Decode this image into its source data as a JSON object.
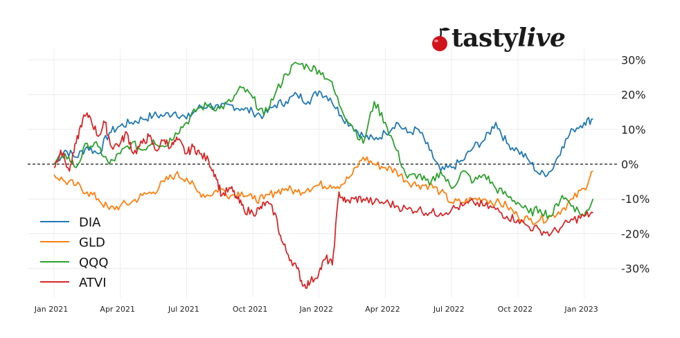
{
  "brand": {
    "name_main": "tasty",
    "name_accent": "live",
    "icon": "cherry-icon",
    "color": "#d0121b"
  },
  "chart_data": {
    "type": "line",
    "title": "",
    "xlabel": "",
    "ylabel": "",
    "x_tick_labels": [
      "Jan 2021",
      "Apr 2021",
      "Jul 2021",
      "Oct 2021",
      "Jan 2022",
      "Apr 2022",
      "Jul 2022",
      "Oct 2022",
      "Jan 2023"
    ],
    "y_ticks": [
      30,
      20,
      10,
      0,
      -10,
      -20,
      -30
    ],
    "y_tick_labels": [
      "30%",
      "20%",
      "10%",
      "0%",
      "-10%",
      "-20%",
      "-30%"
    ],
    "ylim": [
      -37,
      33
    ],
    "x_month_range": [
      0,
      24.5
    ],
    "zero_line": "dashed",
    "grid": true,
    "legend_position": "lower-left",
    "series": [
      {
        "name": "DIA",
        "color": "#1f77b4",
        "points": [
          [
            0,
            0
          ],
          [
            0.5,
            4
          ],
          [
            1,
            2
          ],
          [
            1.5,
            5
          ],
          [
            2,
            3
          ],
          [
            2.5,
            9
          ],
          [
            3,
            11
          ],
          [
            3.5,
            12
          ],
          [
            4,
            13
          ],
          [
            4.5,
            14
          ],
          [
            5,
            14
          ],
          [
            5.5,
            15
          ],
          [
            6,
            13
          ],
          [
            6.5,
            16
          ],
          [
            7,
            17
          ],
          [
            7.5,
            16
          ],
          [
            8,
            17
          ],
          [
            8.5,
            16
          ],
          [
            9,
            15
          ],
          [
            9.5,
            14
          ],
          [
            10,
            17
          ],
          [
            10.5,
            18
          ],
          [
            11,
            20
          ],
          [
            11.5,
            18
          ],
          [
            12,
            21
          ],
          [
            12.5,
            19
          ],
          [
            13,
            14
          ],
          [
            13.5,
            11
          ],
          [
            14,
            8
          ],
          [
            14.5,
            7
          ],
          [
            15,
            9
          ],
          [
            15.5,
            12
          ],
          [
            16,
            9
          ],
          [
            16.5,
            10
          ],
          [
            17,
            4
          ],
          [
            17.5,
            -2
          ],
          [
            18,
            -1
          ],
          [
            18.5,
            1
          ],
          [
            19,
            5
          ],
          [
            19.5,
            7
          ],
          [
            20,
            12
          ],
          [
            20.5,
            6
          ],
          [
            21,
            4
          ],
          [
            21.5,
            1
          ],
          [
            22,
            -3
          ],
          [
            22.5,
            -2
          ],
          [
            23,
            5
          ],
          [
            23.5,
            10
          ],
          [
            24,
            12
          ],
          [
            24.4,
            13
          ]
        ]
      },
      {
        "name": "GLD",
        "color": "#ff7f0e",
        "points": [
          [
            0,
            -3
          ],
          [
            0.5,
            -5
          ],
          [
            1,
            -6
          ],
          [
            1.5,
            -8
          ],
          [
            2,
            -10
          ],
          [
            2.5,
            -13
          ],
          [
            3,
            -12
          ],
          [
            3.5,
            -11
          ],
          [
            4,
            -9
          ],
          [
            4.5,
            -8
          ],
          [
            5,
            -5
          ],
          [
            5.5,
            -3
          ],
          [
            6,
            -4
          ],
          [
            6.5,
            -8
          ],
          [
            7,
            -9
          ],
          [
            7.5,
            -7
          ],
          [
            8,
            -9
          ],
          [
            8.5,
            -8
          ],
          [
            9,
            -10
          ],
          [
            9.5,
            -10
          ],
          [
            10,
            -8
          ],
          [
            10.5,
            -7
          ],
          [
            11,
            -8
          ],
          [
            11.5,
            -7
          ],
          [
            12,
            -6
          ],
          [
            12.5,
            -6
          ],
          [
            13,
            -6
          ],
          [
            13.5,
            -3
          ],
          [
            14,
            2
          ],
          [
            14.5,
            0
          ],
          [
            15,
            -1
          ],
          [
            15.5,
            -2
          ],
          [
            16,
            -5
          ],
          [
            16.5,
            -6
          ],
          [
            17,
            -6
          ],
          [
            17.5,
            -8
          ],
          [
            18,
            -11
          ],
          [
            18.5,
            -11
          ],
          [
            19,
            -10
          ],
          [
            19.5,
            -10
          ],
          [
            20,
            -11
          ],
          [
            20.5,
            -12
          ],
          [
            21,
            -15
          ],
          [
            21.5,
            -16
          ],
          [
            22,
            -16
          ],
          [
            22.5,
            -15
          ],
          [
            23,
            -13
          ],
          [
            23.5,
            -10
          ],
          [
            24,
            -7
          ],
          [
            24.4,
            -2
          ]
        ]
      },
      {
        "name": "QQQ",
        "color": "#2ca02c",
        "points": [
          [
            0,
            0
          ],
          [
            0.5,
            3
          ],
          [
            1,
            -1
          ],
          [
            1.5,
            6
          ],
          [
            2,
            5
          ],
          [
            2.5,
            0
          ],
          [
            3,
            3
          ],
          [
            3.5,
            6
          ],
          [
            4,
            4
          ],
          [
            4.5,
            7
          ],
          [
            5,
            5
          ],
          [
            5.5,
            9
          ],
          [
            6,
            12
          ],
          [
            6.5,
            16
          ],
          [
            7,
            17
          ],
          [
            7.5,
            16
          ],
          [
            8,
            18
          ],
          [
            8.5,
            22
          ],
          [
            9,
            19
          ],
          [
            9.5,
            14
          ],
          [
            10,
            20
          ],
          [
            10.5,
            26
          ],
          [
            11,
            29
          ],
          [
            11.5,
            28
          ],
          [
            12,
            27
          ],
          [
            12.5,
            24
          ],
          [
            13,
            16
          ],
          [
            13.5,
            11
          ],
          [
            14,
            6
          ],
          [
            14.5,
            18
          ],
          [
            15,
            12
          ],
          [
            15.5,
            4
          ],
          [
            16,
            -4
          ],
          [
            16.5,
            -3
          ],
          [
            17,
            -6
          ],
          [
            17.5,
            -2
          ],
          [
            18,
            -7
          ],
          [
            18.5,
            -2
          ],
          [
            19,
            -5
          ],
          [
            19.5,
            -3
          ],
          [
            20,
            -7
          ],
          [
            20.5,
            -9
          ],
          [
            21,
            -11
          ],
          [
            21.5,
            -14
          ],
          [
            22,
            -13
          ],
          [
            22.5,
            -15
          ],
          [
            23,
            -9
          ],
          [
            23.5,
            -12
          ],
          [
            24,
            -15
          ],
          [
            24.4,
            -10
          ]
        ]
      },
      {
        "name": "ATVI",
        "color": "#d62728",
        "points": [
          [
            0,
            -1
          ],
          [
            0.3,
            4
          ],
          [
            0.7,
            -2
          ],
          [
            1,
            6
          ],
          [
            1.3,
            13
          ],
          [
            1.6,
            14
          ],
          [
            2,
            8
          ],
          [
            2.3,
            12
          ],
          [
            2.6,
            5
          ],
          [
            3,
            6
          ],
          [
            3.3,
            9
          ],
          [
            3.6,
            3
          ],
          [
            4,
            6
          ],
          [
            4.3,
            8
          ],
          [
            4.6,
            4
          ],
          [
            5,
            7
          ],
          [
            5.3,
            5
          ],
          [
            5.6,
            7
          ],
          [
            6,
            3
          ],
          [
            6.3,
            5
          ],
          [
            6.6,
            3
          ],
          [
            7,
            1
          ],
          [
            7.3,
            -3
          ],
          [
            7.6,
            -9
          ],
          [
            8,
            -7
          ],
          [
            8.3,
            -10
          ],
          [
            8.6,
            -13
          ],
          [
            9,
            -14
          ],
          [
            9.3,
            -13
          ],
          [
            9.6,
            -11
          ],
          [
            10,
            -14
          ],
          [
            10.3,
            -22
          ],
          [
            10.6,
            -26
          ],
          [
            11,
            -30
          ],
          [
            11.3,
            -35
          ],
          [
            11.6,
            -34
          ],
          [
            12,
            -31
          ],
          [
            12.3,
            -27
          ],
          [
            12.6,
            -29
          ],
          [
            12.9,
            -8
          ],
          [
            13.2,
            -11
          ],
          [
            13.6,
            -10
          ],
          [
            14,
            -10
          ],
          [
            14.5,
            -11
          ],
          [
            15,
            -11
          ],
          [
            15.5,
            -12
          ],
          [
            16,
            -13
          ],
          [
            16.5,
            -13
          ],
          [
            17,
            -14
          ],
          [
            17.5,
            -14
          ],
          [
            18,
            -13
          ],
          [
            18.5,
            -12
          ],
          [
            19,
            -11
          ],
          [
            19.5,
            -12
          ],
          [
            20,
            -13
          ],
          [
            20.5,
            -15
          ],
          [
            21,
            -16
          ],
          [
            21.5,
            -18
          ],
          [
            22,
            -19
          ],
          [
            22.5,
            -20
          ],
          [
            23,
            -18
          ],
          [
            23.5,
            -16
          ],
          [
            24,
            -15
          ],
          [
            24.4,
            -14
          ]
        ]
      }
    ]
  }
}
